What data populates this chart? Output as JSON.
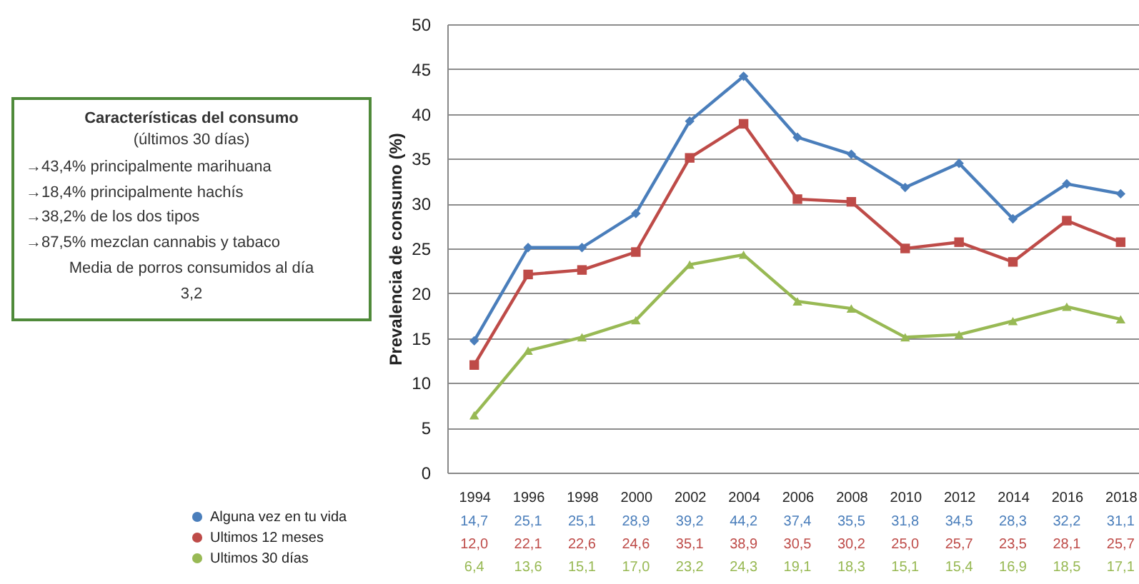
{
  "chart_data": {
    "type": "line",
    "ylabel": "Prevalencia de consumo (%)",
    "categories": [
      "1994",
      "1996",
      "1998",
      "2000",
      "2002",
      "2004",
      "2006",
      "2008",
      "2010",
      "2012",
      "2014",
      "2016",
      "2018"
    ],
    "ylim": [
      0,
      50
    ],
    "yticks": [
      0,
      5,
      10,
      15,
      20,
      25,
      30,
      35,
      40,
      45,
      50
    ],
    "grid": "y",
    "legend": "bottom left",
    "series": [
      {
        "name": "Alguna vez en tu vida",
        "color": "#4a7ebb",
        "marker": "diamond",
        "values": [
          14.7,
          25.1,
          25.1,
          28.9,
          39.2,
          44.2,
          37.4,
          35.5,
          31.8,
          34.5,
          28.3,
          32.2,
          31.1
        ],
        "value_labels": [
          "14,7",
          "25,1",
          "25,1",
          "28,9",
          "39,2",
          "44,2",
          "37,4",
          "35,5",
          "31,8",
          "34,5",
          "28,3",
          "32,2",
          "31,1"
        ]
      },
      {
        "name": "Ultimos 12 meses",
        "color": "#be4b48",
        "marker": "square",
        "values": [
          12.0,
          22.1,
          22.6,
          24.6,
          35.1,
          38.9,
          30.5,
          30.2,
          25.0,
          25.7,
          23.5,
          28.1,
          25.7
        ],
        "value_labels": [
          "12,0",
          "22,1",
          "22,6",
          "24,6",
          "35,1",
          "38,9",
          "30,5",
          "30,2",
          "25,0",
          "25,7",
          "23,5",
          "28,1",
          "25,7"
        ]
      },
      {
        "name": "Ultimos 30 días",
        "color": "#98b954",
        "marker": "triangle",
        "values": [
          6.4,
          13.6,
          15.1,
          17.0,
          23.2,
          24.3,
          19.1,
          18.3,
          15.1,
          15.4,
          16.9,
          18.5,
          17.1
        ],
        "value_labels": [
          "6,4",
          "13,6",
          "15,1",
          "17,0",
          "23,2",
          "24,3",
          "19,1",
          "18,3",
          "15,1",
          "15,4",
          "16,9",
          "18,5",
          "17,1"
        ]
      }
    ],
    "annotations": [
      "Características del consumo",
      "(últimos 30 días)",
      "→43,4% principalmente marihuana",
      "→18,4% principalmente hachís",
      "→38,2% de los dos tipos",
      "→87,5% mezclan cannabis y tabaco",
      "Media de porros consumidos al día",
      "3,2"
    ]
  }
}
